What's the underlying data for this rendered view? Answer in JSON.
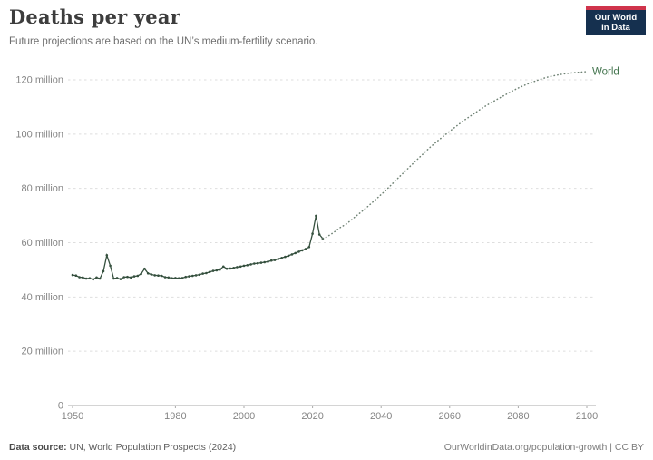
{
  "header": {
    "title": "Deaths per year",
    "subtitle": "Future projections are based on the UN’s medium-fertility scenario.",
    "logo": {
      "line1": "Our World",
      "line2": "in Data",
      "bg_color": "#15304f",
      "stripe_color": "#d0344c"
    }
  },
  "chart_data": {
    "type": "line",
    "title": "Deaths per year",
    "xlabel": "",
    "ylabel": "",
    "xlim": [
      1950,
      2100
    ],
    "ylim": [
      0,
      123
    ],
    "grid": "horizontal-dashed",
    "grid_color": "#dedede",
    "axis_text_color": "#858585",
    "x_ticks": [
      1950,
      1980,
      2000,
      2020,
      2040,
      2060,
      2080,
      2100
    ],
    "y_ticks": [
      {
        "value": 0,
        "label": "0"
      },
      {
        "value": 20,
        "label": "20 million"
      },
      {
        "value": 40,
        "label": "40 million"
      },
      {
        "value": 60,
        "label": "60 million"
      },
      {
        "value": 80,
        "label": "80 million"
      },
      {
        "value": 100,
        "label": "100 million"
      },
      {
        "value": 120,
        "label": "120 million"
      }
    ],
    "end_label": {
      "text": "World",
      "color": "#44754f"
    },
    "series": [
      {
        "name": "World (historical estimates)",
        "style": "solid",
        "markers": true,
        "color": "#35503e",
        "x_start_year": 1950,
        "x_step": 1,
        "values": [
          48.1,
          47.9,
          47.3,
          47.2,
          46.8,
          46.9,
          46.5,
          47.2,
          46.8,
          49.5,
          55.4,
          51.5,
          46.8,
          47.0,
          46.6,
          47.3,
          47.4,
          47.2,
          47.6,
          47.8,
          48.5,
          50.4,
          48.7,
          48.3,
          48.0,
          47.9,
          47.8,
          47.3,
          47.2,
          46.9,
          47.0,
          46.9,
          47.0,
          47.4,
          47.6,
          47.8,
          48.0,
          48.2,
          48.6,
          48.8,
          49.2,
          49.6,
          49.8,
          50.1,
          51.2,
          50.4,
          50.5,
          50.7,
          51.0,
          51.2,
          51.5,
          51.7,
          52.0,
          52.3,
          52.4,
          52.6,
          52.8,
          53.0,
          53.4,
          53.6,
          54.0,
          54.4,
          54.8,
          55.2,
          55.7,
          56.2,
          56.7,
          57.2,
          57.7,
          58.4,
          63.3,
          69.9,
          63.0,
          61.5
        ]
      },
      {
        "name": "World (UN medium-fertility projection)",
        "style": "dotted",
        "markers": false,
        "color": "#6f8274",
        "x": [
          2023,
          2024,
          2026,
          2028,
          2030,
          2032,
          2034,
          2036,
          2038,
          2040,
          2042,
          2044,
          2046,
          2048,
          2050,
          2052,
          2054,
          2056,
          2058,
          2060,
          2062,
          2064,
          2066,
          2068,
          2070,
          2072,
          2074,
          2076,
          2078,
          2080,
          2082,
          2084,
          2086,
          2088,
          2090,
          2092,
          2094,
          2096,
          2098,
          2100
        ],
        "values": [
          61.5,
          62.0,
          63.6,
          65.5,
          67.0,
          69.1,
          71.1,
          73.2,
          75.4,
          77.7,
          80.1,
          82.6,
          85.1,
          87.5,
          90.0,
          92.4,
          94.8,
          97.0,
          99.0,
          101.0,
          103.0,
          104.9,
          106.6,
          108.3,
          110.0,
          111.5,
          112.9,
          114.3,
          115.7,
          117.0,
          118.1,
          119.1,
          120.0,
          120.8,
          121.4,
          121.9,
          122.3,
          122.6,
          122.8,
          123.0
        ]
      }
    ]
  },
  "footer": {
    "source_label": "Data source:",
    "source_text": " UN, World Population Prospects (2024)",
    "credit": "OurWorldinData.org/population-growth | CC BY"
  }
}
